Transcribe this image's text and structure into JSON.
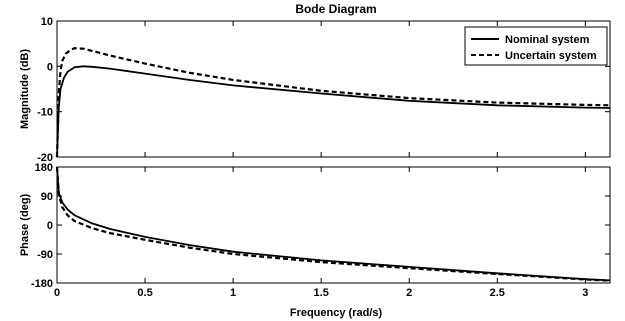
{
  "chart_data": {
    "type": "line",
    "title": "Bode Diagram",
    "xlabel": "Frequency  (rad/s)",
    "xlim": [
      0,
      3.14
    ],
    "xticks": [
      "0",
      "0.5",
      "1",
      "1.5",
      "2",
      "2.5",
      "3"
    ],
    "legend_position": "top-right",
    "grid": false,
    "series_styles": [
      {
        "name": "Nominal system",
        "dash": "solid",
        "color": "#000000"
      },
      {
        "name": "Uncertain system",
        "dash": "dashed",
        "color": "#000000"
      }
    ],
    "panels": [
      {
        "ylabel": "Magnitude (dB)",
        "ylim": [
          -20,
          10
        ],
        "yticks": [
          "10",
          "0",
          "-10",
          "-20"
        ],
        "series": [
          {
            "name": "Nominal system",
            "x": [
              0,
              0.01,
              0.02,
              0.04,
              0.06,
              0.1,
              0.15,
              0.2,
              0.3,
              0.5,
              0.75,
              1.0,
              1.5,
              2.0,
              2.5,
              3.0,
              3.14
            ],
            "y": [
              -20,
              -9,
              -5,
              -2.5,
              -1.2,
              -0.2,
              0.0,
              -0.1,
              -0.5,
              -1.6,
              -3.0,
              -4.2,
              -6.0,
              -7.6,
              -8.6,
              -9.1,
              -9.2
            ]
          },
          {
            "name": "Uncertain system",
            "x": [
              0,
              0.01,
              0.02,
              0.03,
              0.05,
              0.08,
              0.1,
              0.15,
              0.2,
              0.3,
              0.5,
              0.75,
              1.0,
              1.5,
              2.0,
              2.5,
              3.0,
              3.14
            ],
            "y": [
              -20,
              -6,
              -1,
              1.2,
              2.8,
              3.7,
              4.0,
              3.9,
              3.4,
              2.4,
              0.6,
              -1.4,
              -3.0,
              -5.4,
              -7.0,
              -8.0,
              -8.5,
              -8.6
            ]
          }
        ]
      },
      {
        "ylabel": "Phase (deg)",
        "ylim": [
          -180,
          180
        ],
        "yticks": [
          "180",
          "90",
          "0",
          "-90",
          "-180"
        ],
        "series": [
          {
            "name": "Nominal system",
            "x": [
              0,
              0.01,
              0.03,
              0.06,
              0.1,
              0.2,
              0.3,
              0.5,
              0.75,
              1.0,
              1.5,
              2.0,
              2.5,
              3.0,
              3.14
            ],
            "y": [
              180,
              100,
              70,
              48,
              30,
              5,
              -12,
              -37,
              -62,
              -83,
              -110,
              -130,
              -150,
              -168,
              -172
            ]
          },
          {
            "name": "Uncertain system",
            "x": [
              0,
              0.01,
              0.03,
              0.06,
              0.1,
              0.2,
              0.3,
              0.5,
              0.75,
              1.0,
              1.5,
              2.0,
              2.5,
              3.0,
              3.14
            ],
            "y": [
              180,
              95,
              55,
              30,
              12,
              -10,
              -25,
              -46,
              -70,
              -90,
              -115,
              -134,
              -152,
              -169,
              -173
            ]
          }
        ]
      }
    ]
  }
}
